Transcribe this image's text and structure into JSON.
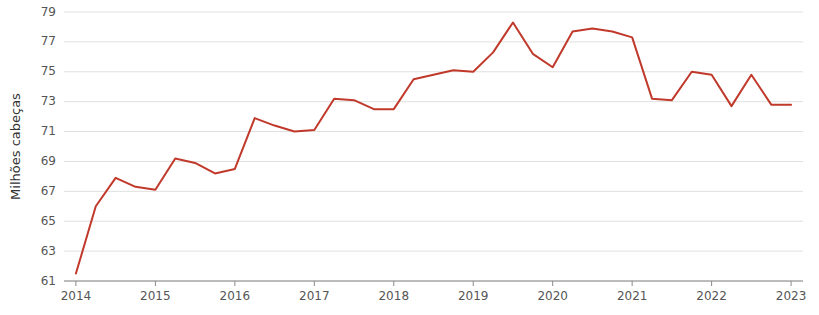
{
  "chart_data": {
    "type": "line",
    "ylabel": "Milhões cabeças",
    "x": [
      2014.0,
      2014.25,
      2014.5,
      2014.75,
      2015.0,
      2015.25,
      2015.5,
      2015.75,
      2016.0,
      2016.25,
      2016.5,
      2016.75,
      2017.0,
      2017.25,
      2017.5,
      2017.75,
      2018.0,
      2018.25,
      2018.5,
      2018.75,
      2019.0,
      2019.25,
      2019.5,
      2019.75,
      2020.0,
      2020.25,
      2020.5,
      2020.75,
      2021.0,
      2021.25,
      2021.5,
      2021.75,
      2022.0,
      2022.25,
      2022.5,
      2022.75,
      2023.0
    ],
    "values": [
      61.5,
      66.0,
      67.9,
      67.3,
      67.1,
      69.2,
      68.9,
      68.2,
      68.5,
      71.9,
      71.4,
      71.0,
      71.1,
      73.2,
      73.1,
      72.5,
      72.5,
      74.5,
      74.8,
      75.1,
      75.0,
      76.3,
      78.3,
      76.2,
      75.3,
      77.7,
      77.9,
      77.7,
      77.3,
      73.2,
      73.1,
      75.0,
      74.8,
      72.7,
      74.8,
      72.8,
      72.8
    ],
    "color": "#c0392b",
    "xlim": [
      2013.85,
      2023.15
    ],
    "xticks": [
      2014,
      2015,
      2016,
      2017,
      2018,
      2019,
      2020,
      2021,
      2022,
      2023
    ],
    "ylim": [
      61,
      79
    ],
    "yticks": [
      61,
      63,
      65,
      67,
      69,
      71,
      73,
      75,
      77,
      79
    ],
    "grid": true
  }
}
